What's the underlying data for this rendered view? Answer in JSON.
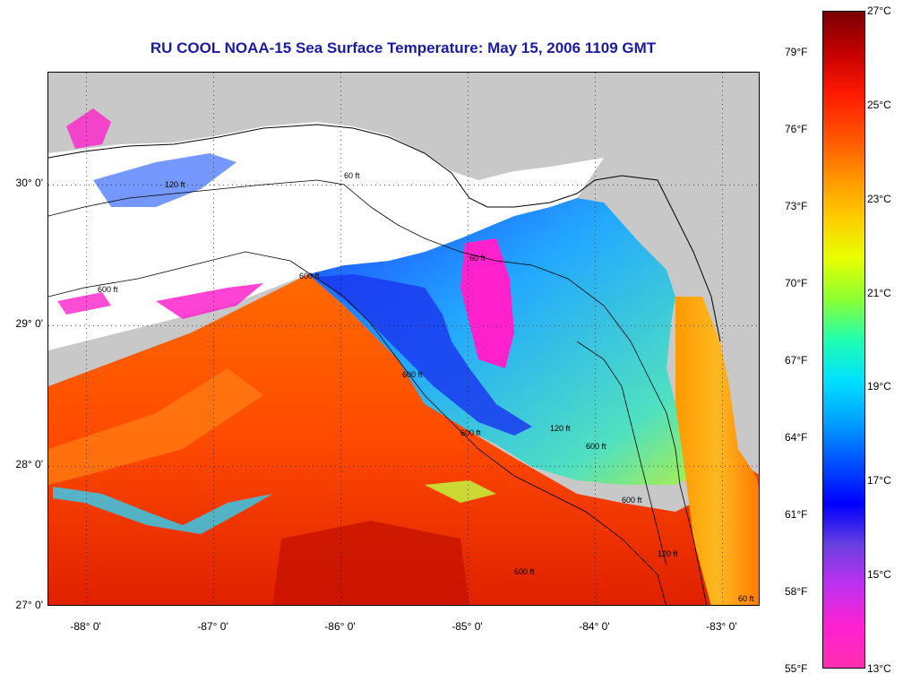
{
  "title": "RU COOL  NOAA-15  Sea Surface Temperature:  May 15, 2006 1109 GMT",
  "map": {
    "lat_labels": [
      "30° 0'",
      "29° 0'",
      "28° 0'",
      "27° 0'"
    ],
    "lon_labels": [
      "-88° 0'",
      "-87° 0'",
      "-86° 0'",
      "-85° 0'",
      "-84° 0'",
      "-83° 0'"
    ],
    "lat_range": [
      27,
      30.8
    ],
    "lon_range": [
      -88.3,
      -82.7
    ],
    "contour_labels": [
      "600 ft",
      "60 ft",
      "120 ft",
      "600 ft",
      "600 ft",
      "600 ft",
      "60 ft",
      "120 ft",
      "600 ft",
      "600 ft",
      "120 ft",
      "600 ft",
      "60 ft"
    ],
    "colors": {
      "land": "#c8c8c8",
      "cloud": "#ffffff",
      "warm": "#ff5500",
      "cool": "#1b6dff",
      "cold": "#ff22cc"
    }
  },
  "colorbar": {
    "celsius_labels": [
      "27°C",
      "25°C",
      "23°C",
      "21°C",
      "19°C",
      "17°C",
      "15°C",
      "13°C"
    ],
    "fahrenheit_labels": [
      "79°F",
      "76°F",
      "73°F",
      "70°F",
      "67°F",
      "64°F",
      "61°F",
      "58°F",
      "55°F"
    ],
    "celsius_range": [
      13,
      27
    ],
    "fahrenheit_range": [
      55,
      80.6
    ],
    "gradient_stops": [
      "#7a0000",
      "#c40000",
      "#ff1a00",
      "#ff5000",
      "#ff9000",
      "#ffcc00",
      "#e8ff00",
      "#8cff30",
      "#20ffb0",
      "#00e0ff",
      "#00a0ff",
      "#0050ff",
      "#0000ff",
      "#6a40e0",
      "#c030f0",
      "#ff20d0",
      "#ff30b0"
    ]
  }
}
